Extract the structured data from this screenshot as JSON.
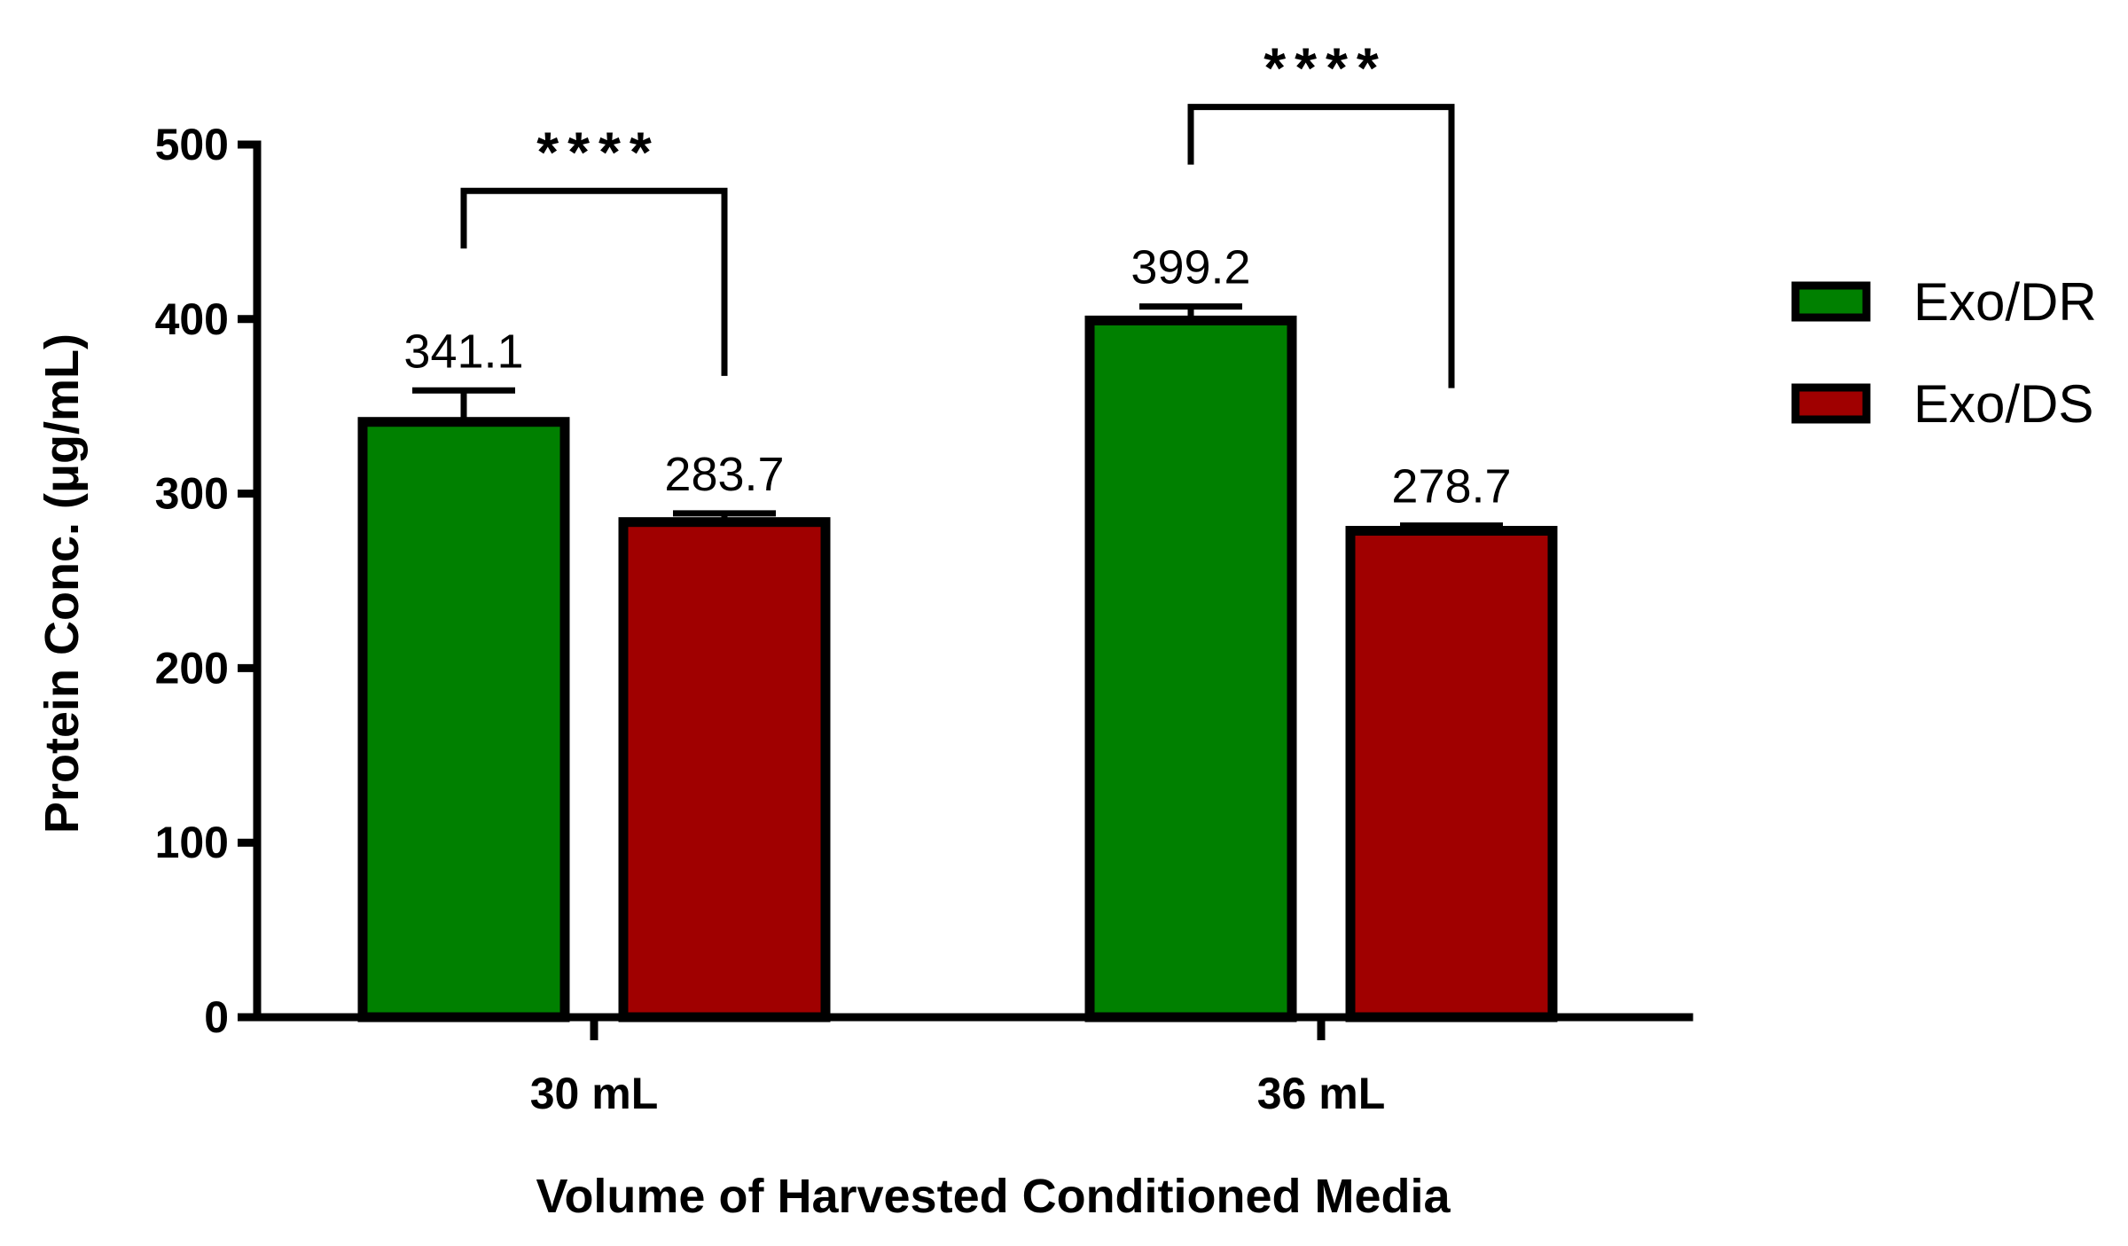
{
  "chart_data": {
    "type": "bar",
    "title": "",
    "xlabel": "Volume of Harvested Conditioned Media",
    "ylabel": "Protein Conc. (μg/mL)",
    "categories": [
      "30 mL",
      "36 mL"
    ],
    "ylim": [
      0,
      500
    ],
    "yticks": [
      "0",
      "100",
      "200",
      "300",
      "400",
      "500"
    ],
    "grid": false,
    "legend_position": "right",
    "series": [
      {
        "name": "Exo/DR",
        "color": "#008000",
        "values": [
          341.1,
          399.2
        ],
        "labels": [
          "341.1",
          "399.2"
        ],
        "error": [
          18,
          8
        ]
      },
      {
        "name": "Exo/DS",
        "color": "#A00000",
        "values": [
          283.7,
          278.7
        ],
        "labels": [
          "283.7",
          "278.7"
        ],
        "error": [
          5,
          3
        ]
      }
    ],
    "annotations": [
      {
        "category_index": 0,
        "text": "****"
      },
      {
        "category_index": 1,
        "text": "****"
      }
    ]
  }
}
